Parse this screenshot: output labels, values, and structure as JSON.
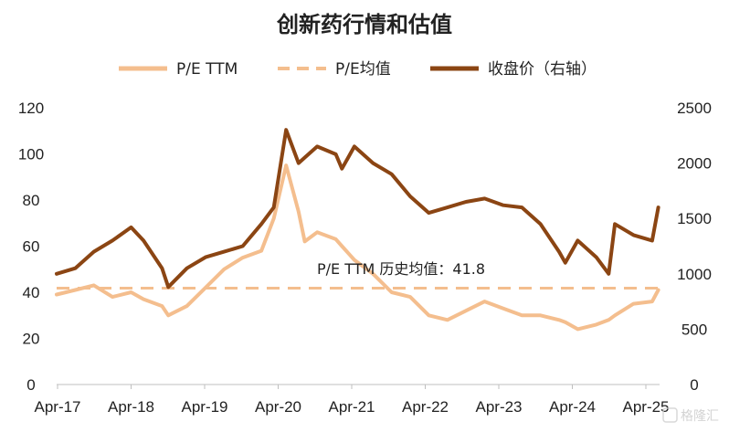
{
  "chart_data": {
    "type": "line",
    "title": "创新药行情和估值",
    "x_tick_labels": [
      "Apr-17",
      "Apr-18",
      "Apr-19",
      "Apr-20",
      "Apr-21",
      "Apr-22",
      "Apr-23",
      "Apr-24",
      "Apr-25"
    ],
    "x": [
      "2017-04",
      "2017-07",
      "2017-10",
      "2018-01",
      "2018-04",
      "2018-06",
      "2018-09",
      "2018-10",
      "2019-01",
      "2019-04",
      "2019-07",
      "2019-10",
      "2020-01",
      "2020-03",
      "2020-05",
      "2020-07",
      "2020-08",
      "2020-10",
      "2021-01",
      "2021-02",
      "2021-04",
      "2021-07",
      "2021-10",
      "2022-01",
      "2022-04",
      "2022-07",
      "2022-10",
      "2023-01",
      "2023-04",
      "2023-07",
      "2023-10",
      "2024-01",
      "2024-02",
      "2024-04",
      "2024-07",
      "2024-09",
      "2024-10",
      "2025-01",
      "2025-04",
      "2025-05"
    ],
    "y_left_ticks": [
      "0",
      "20",
      "40",
      "60",
      "80",
      "100",
      "120"
    ],
    "y_right_ticks": [
      "0",
      "500",
      "1000",
      "1500",
      "2000",
      "2500"
    ],
    "y_left_range": [
      0,
      120
    ],
    "y_right_range": [
      0,
      2500
    ],
    "series": [
      {
        "name": "P/E TTM",
        "axis": "left",
        "style": "solid",
        "color": "#F4BE8E",
        "values": [
          39,
          41,
          43,
          38,
          40,
          37,
          34,
          30,
          34,
          42,
          50,
          55,
          58,
          72,
          95,
          75,
          62,
          66,
          63,
          60,
          54,
          48,
          40,
          38,
          30,
          28,
          32,
          36,
          33,
          30,
          30,
          28,
          27,
          24,
          26,
          28,
          30,
          35,
          36,
          41
        ]
      },
      {
        "name": "P/E均值",
        "axis": "left",
        "style": "dashed",
        "color": "#F4BE8E",
        "values": [
          41.8,
          41.8,
          41.8,
          41.8,
          41.8,
          41.8,
          41.8,
          41.8,
          41.8,
          41.8,
          41.8,
          41.8,
          41.8,
          41.8,
          41.8,
          41.8,
          41.8,
          41.8,
          41.8,
          41.8,
          41.8,
          41.8,
          41.8,
          41.8,
          41.8,
          41.8,
          41.8,
          41.8,
          41.8,
          41.8,
          41.8,
          41.8,
          41.8,
          41.8,
          41.8,
          41.8,
          41.8,
          41.8,
          41.8,
          41.8
        ]
      },
      {
        "name": "收盘价（右轴）",
        "axis": "right",
        "style": "solid",
        "color": "#8B4513",
        "values": [
          1000,
          1050,
          1200,
          1300,
          1420,
          1300,
          1050,
          880,
          1050,
          1150,
          1200,
          1250,
          1450,
          1600,
          2300,
          2000,
          2050,
          2150,
          2080,
          1950,
          2150,
          2000,
          1900,
          1700,
          1550,
          1600,
          1650,
          1680,
          1620,
          1600,
          1450,
          1200,
          1100,
          1300,
          1150,
          1000,
          1450,
          1350,
          1300,
          1600
        ]
      }
    ],
    "annotation": "P/E TTM 历史均值：41.8",
    "legend_position": "top",
    "grid": false
  },
  "watermark": "格隆汇"
}
